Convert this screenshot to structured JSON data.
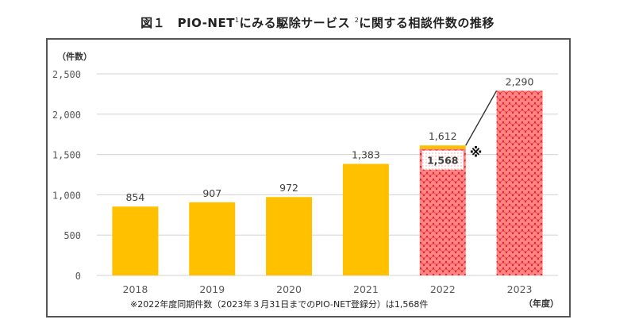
{
  "title": {
    "prefix": "図１　PIO-NET",
    "sup1": "1",
    "middle": "にみる駆除サービス ",
    "sup2": "2",
    "suffix": "に関する相談件数の推移"
  },
  "chart_data": {
    "type": "bar",
    "title": "図１　PIO-NET¹にみる駆除サービス²に関する相談件数の推移",
    "xlabel": "（年度）",
    "ylabel": "（件数）",
    "ylim": [
      0,
      2500
    ],
    "yticks": [
      0,
      500,
      1000,
      1500,
      2000,
      2500
    ],
    "ytick_labels": [
      "0",
      "500",
      "1,000",
      "1,500",
      "2,000",
      "2,500"
    ],
    "grid": true,
    "categories": [
      "2018",
      "2019",
      "2020",
      "2021",
      "2022",
      "2023"
    ],
    "values": [
      854,
      907,
      972,
      1383,
      1612,
      2290
    ],
    "data_labels": [
      "854",
      "907",
      "972",
      "1,383",
      "1,612",
      "2,290"
    ],
    "same_period": {
      "category": "2022",
      "value": 1568,
      "label": "1,568",
      "marker": "※"
    },
    "annotation": "※2022年度同期件数（2023年３月31日までのPIO-NET登録分）は1,568件",
    "colors": {
      "bar": "#FFC000",
      "pattern_bar": "#FF4B4B",
      "pattern_bg": "#FF8080",
      "gridline": "#D9D9D9",
      "leader_line": "#333333"
    }
  }
}
